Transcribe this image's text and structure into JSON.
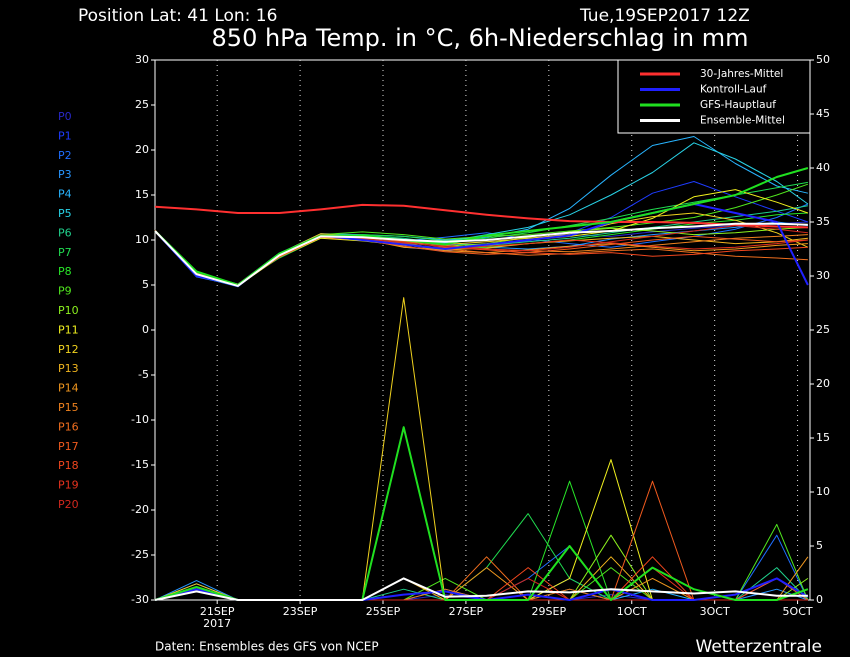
{
  "chart_data": {
    "type": "line",
    "header_left": "Position   Lat: 41 Lon: 16",
    "header_right": "Tue,19SEP2017  12Z",
    "title": "850 hPa Temp. in °C, 6h-Niederschlag in mm",
    "footer_left": "Daten: Ensembles des GFS von NCEP",
    "footer_right": "Wetterzentrale",
    "x_year": "2017",
    "x": [
      -1.5,
      -0.5,
      0.5,
      1.5,
      2.5,
      3.5,
      4.5,
      5.5,
      6.5,
      7.5,
      8.5,
      9.5,
      10.5,
      11.5,
      12.5,
      13.5,
      14.25
    ],
    "xlim": [
      -1.5,
      14.3
    ],
    "xticks": [
      {
        "value": 0,
        "label": "21SEP"
      },
      {
        "value": 2,
        "label": "23SEP"
      },
      {
        "value": 4,
        "label": "25SEP"
      },
      {
        "value": 6,
        "label": "27SEP"
      },
      {
        "value": 8,
        "label": "29SEP"
      },
      {
        "value": 10,
        "label": "1OCT"
      },
      {
        "value": 12,
        "label": "3OCT"
      },
      {
        "value": 14,
        "label": "5OCT"
      }
    ],
    "ylim": [
      -30,
      30
    ],
    "yticks": [
      -30,
      -25,
      -20,
      -15,
      -10,
      -5,
      0,
      5,
      10,
      15,
      20,
      25,
      30
    ],
    "y2lim": [
      0,
      50
    ],
    "y2ticks": [
      0,
      5,
      10,
      15,
      20,
      25,
      30,
      35,
      40,
      45,
      50
    ],
    "grid": "x",
    "legend": "top-right",
    "series": [
      {
        "name": "30-Jahres-Mittel",
        "color": "#ff3030",
        "values": [
          13.7,
          13.4,
          13.0,
          13.0,
          13.4,
          13.9,
          13.8,
          13.3,
          12.8,
          12.4,
          12.1,
          12.0,
          12.0,
          11.9,
          11.7,
          11.5,
          11.4
        ]
      },
      {
        "name": "Kontroll-Lauf",
        "color": "#2020ff",
        "values": [
          11,
          6,
          5,
          8.5,
          10.5,
          10,
          9.5,
          9,
          9.5,
          10,
          10.5,
          12,
          13,
          14,
          13,
          12,
          5
        ],
        "y2_values": [
          0,
          1,
          0,
          0,
          0,
          0,
          0.5,
          0.8,
          0,
          0.5,
          0,
          1,
          0,
          0,
          0.5,
          2,
          0.3
        ]
      },
      {
        "name": "GFS-Hauptlauf",
        "color": "#20e020",
        "values": [
          11,
          6.5,
          5,
          8.5,
          10.5,
          10.5,
          10,
          9.5,
          10.5,
          11,
          11.5,
          12,
          13,
          14,
          15,
          17,
          18
        ],
        "y2_values": [
          0,
          1.2,
          0,
          0,
          0,
          0,
          16,
          0,
          0,
          0,
          5,
          0,
          3,
          1,
          0,
          0,
          1
        ]
      },
      {
        "name": "Ensemble-Mittel",
        "color": "#ffffff",
        "values": [
          11,
          6.2,
          4.9,
          8.3,
          10.4,
          10.3,
          10,
          9.8,
          10,
          10.4,
          10.8,
          11,
          11.3,
          11.5,
          11.8,
          11.8,
          11.7
        ],
        "y2_values": [
          0,
          0.8,
          0,
          0,
          0,
          0,
          2,
          0.3,
          0.4,
          0.8,
          0.7,
          1,
          0.8,
          0.6,
          0.8,
          0.4,
          0.4
        ]
      }
    ],
    "members": [
      {
        "name": "P0",
        "color": "#2828c8",
        "values": [
          11,
          6.2,
          5,
          8.2,
          10.4,
          10.1,
          9.6,
          9.4,
          9.8,
          10.2,
          10.6,
          10.4,
          10.9,
          11.3,
          11.6,
          11.8,
          12.0
        ],
        "y2_values": [
          0,
          1,
          0,
          0,
          0,
          0,
          0,
          0.5,
          0,
          0,
          0,
          0.5,
          0,
          0,
          0,
          0,
          0
        ]
      },
      {
        "name": "P1",
        "color": "#1e3cff",
        "values": [
          11,
          6,
          4.8,
          8.4,
          10.6,
          10.3,
          9.2,
          8.8,
          9.4,
          9.9,
          10.8,
          12.5,
          15.2,
          16.5,
          14.8,
          13.2,
          12.0
        ],
        "y2_values": [
          0,
          1.5,
          0,
          0,
          0,
          0,
          0,
          1,
          0,
          0,
          2,
          0,
          0,
          0,
          0,
          2,
          0
        ]
      },
      {
        "name": "P2",
        "color": "#1e6eff",
        "values": [
          10.9,
          6.3,
          5.1,
          8.1,
          10.3,
          10.0,
          9.9,
          10.3,
          10.8,
          10.1,
          9.6,
          9.2,
          9.8,
          10.4,
          11.2,
          12.5,
          14.0
        ],
        "y2_values": [
          0,
          1,
          0,
          0,
          0,
          0,
          0,
          0,
          0,
          2,
          5,
          0,
          0,
          0,
          0,
          6,
          0
        ]
      },
      {
        "name": "P3",
        "color": "#2896ff",
        "values": [
          11,
          5.9,
          4.9,
          8.3,
          10.5,
          10.4,
          10.1,
          9.7,
          9.2,
          9.0,
          9.3,
          10.1,
          10.6,
          11.0,
          11.4,
          12.0,
          11.6
        ],
        "y2_values": [
          0,
          1.8,
          0,
          0,
          0,
          0,
          0,
          0,
          0,
          0,
          5,
          0,
          0,
          0,
          0,
          1,
          0
        ]
      },
      {
        "name": "P4",
        "color": "#28b4ff",
        "values": [
          11.1,
          6.1,
          5.0,
          8.5,
          10.7,
          10.6,
          10.4,
          10.0,
          10.3,
          11.2,
          13.5,
          17.2,
          20.5,
          21.5,
          18.5,
          16.0,
          15.2
        ],
        "y2_values": [
          0,
          1,
          0,
          0,
          0,
          0,
          0,
          0,
          0,
          0,
          0,
          0,
          1,
          0,
          0,
          0,
          0
        ]
      },
      {
        "name": "P5",
        "color": "#28d2e6",
        "values": [
          11,
          6.2,
          5.0,
          8.2,
          10.4,
          10.0,
          9.5,
          9.8,
          10.6,
          11.4,
          12.8,
          15.0,
          17.5,
          20.8,
          19.0,
          16.5,
          14.0
        ],
        "y2_values": [
          0,
          1,
          0,
          0,
          0,
          0,
          0,
          0,
          0,
          0,
          0,
          0,
          0,
          0,
          0,
          0,
          0
        ]
      },
      {
        "name": "P6",
        "color": "#20d08c",
        "values": [
          11,
          6,
          5,
          8.4,
          10.6,
          10.5,
          10.2,
          9.6,
          9.4,
          9.8,
          10.2,
          10.8,
          11.4,
          12.0,
          12.6,
          13.2,
          13.8
        ],
        "y2_values": [
          0,
          1.2,
          0,
          0,
          0,
          0,
          1,
          0,
          0,
          0,
          1,
          0,
          0,
          0,
          0,
          3,
          0
        ]
      },
      {
        "name": "P7",
        "color": "#20dc50",
        "values": [
          10.9,
          6.4,
          5.1,
          8.0,
          10.2,
          10.6,
          10.4,
          9.9,
          10.2,
          10.8,
          11.6,
          12.4,
          13.4,
          14.2,
          15.0,
          15.8,
          16.4
        ],
        "y2_values": [
          0,
          1,
          0,
          0,
          0,
          0,
          0,
          0,
          3,
          8,
          2,
          0,
          0,
          0,
          0,
          0,
          1
        ]
      },
      {
        "name": "P8",
        "color": "#28e628",
        "values": [
          11,
          6.0,
          4.9,
          8.3,
          10.5,
          10.3,
          9.6,
          9.0,
          9.2,
          9.6,
          10.0,
          10.6,
          11.2,
          11.8,
          12.2,
          12.8,
          13.0
        ],
        "y2_values": [
          0,
          1,
          0,
          0,
          0,
          0,
          0,
          0,
          0,
          0,
          11,
          0,
          0,
          0,
          0,
          0,
          0
        ]
      },
      {
        "name": "P9",
        "color": "#50e61e",
        "values": [
          11.1,
          6.2,
          5.0,
          8.4,
          10.6,
          10.9,
          10.6,
          10.1,
          10.4,
          10.6,
          11.0,
          11.4,
          11.9,
          12.5,
          13.6,
          15.0,
          16.2
        ],
        "y2_values": [
          0,
          1,
          0,
          0,
          0,
          0,
          0,
          2,
          0,
          0,
          0,
          3,
          0,
          0,
          0,
          7,
          0
        ]
      },
      {
        "name": "P10",
        "color": "#8cf01e",
        "values": [
          11,
          6.1,
          5.0,
          8.2,
          10.4,
          10.2,
          9.7,
          9.3,
          9.6,
          10.3,
          10.9,
          11.3,
          11.0,
          10.6,
          10.8,
          11.2,
          11.4
        ],
        "y2_values": [
          0,
          1,
          0,
          0,
          0,
          0,
          0,
          0,
          0,
          0,
          0,
          6,
          0,
          0,
          0,
          0,
          2
        ]
      },
      {
        "name": "P11",
        "color": "#f0f01e",
        "values": [
          10.9,
          6.3,
          4.9,
          8.1,
          10.2,
          9.9,
          9.4,
          9.1,
          9.5,
          10.0,
          10.4,
          11.0,
          12.4,
          14.8,
          15.6,
          14.2,
          13.0
        ],
        "y2_values": [
          0,
          1,
          0,
          0,
          0,
          0,
          0,
          0,
          0,
          0,
          2,
          13,
          0,
          0,
          0,
          0,
          0
        ]
      },
      {
        "name": "P12",
        "color": "#f0d21e",
        "values": [
          11,
          6.0,
          5.1,
          8.5,
          10.7,
          10.4,
          9.8,
          9.5,
          9.8,
          10.2,
          10.6,
          11.8,
          12.6,
          13.0,
          12.2,
          10.8,
          9.2
        ],
        "y2_values": [
          0,
          1.5,
          0,
          0,
          0,
          0,
          28,
          0,
          0,
          0,
          0,
          0,
          0,
          0,
          0,
          0,
          0
        ]
      },
      {
        "name": "P13",
        "color": "#f0b41e",
        "values": [
          11,
          6.2,
          5.0,
          8.3,
          10.5,
          10.1,
          9.2,
          8.9,
          9.1,
          9.6,
          9.9,
          10.2,
          10.4,
          10.0,
          9.6,
          9.8,
          10.2
        ],
        "y2_values": [
          0,
          1,
          0,
          0,
          0,
          0,
          2,
          0,
          0,
          0,
          0,
          4,
          0,
          0,
          0,
          0,
          0
        ]
      },
      {
        "name": "P14",
        "color": "#f0961e",
        "values": [
          11.1,
          6.1,
          4.9,
          8.2,
          10.4,
          10.0,
          9.5,
          8.8,
          8.6,
          8.9,
          9.3,
          9.6,
          9.2,
          8.8,
          9.0,
          9.4,
          9.6
        ],
        "y2_values": [
          0,
          1,
          0,
          0,
          0,
          0,
          0,
          0,
          3,
          0,
          0,
          0,
          2,
          0,
          0,
          0,
          4
        ]
      },
      {
        "name": "P15",
        "color": "#f0821e",
        "values": [
          11,
          6.3,
          5.0,
          8.4,
          10.6,
          10.3,
          9.9,
          9.4,
          9.0,
          8.8,
          8.7,
          9.0,
          9.4,
          9.8,
          10.2,
          10.4,
          10.6
        ],
        "y2_values": [
          0,
          1,
          0,
          0,
          0,
          0,
          0,
          1,
          0,
          0,
          0,
          0,
          0,
          0,
          0,
          0,
          0
        ]
      },
      {
        "name": "P16",
        "color": "#f06e1e",
        "values": [
          11,
          6.0,
          5.1,
          8.3,
          10.5,
          10.2,
          9.6,
          9.0,
          8.6,
          8.3,
          8.5,
          8.8,
          9.0,
          8.6,
          8.2,
          8.0,
          7.8
        ],
        "y2_values": [
          0,
          1,
          0,
          0,
          0,
          0,
          0,
          0,
          4,
          0,
          1,
          0,
          0,
          0,
          0,
          0,
          0
        ]
      },
      {
        "name": "P17",
        "color": "#f05a1e",
        "values": [
          10.9,
          6.2,
          5.0,
          8.1,
          10.3,
          10.0,
          9.3,
          8.7,
          8.4,
          8.6,
          9.0,
          9.5,
          10.0,
          10.4,
          10.1,
          9.8,
          10.0
        ],
        "y2_values": [
          0,
          1,
          0,
          0,
          0,
          0,
          0,
          0,
          0,
          0,
          0,
          0,
          11,
          0,
          0,
          2,
          0
        ]
      },
      {
        "name": "P18",
        "color": "#f0461e",
        "values": [
          11,
          6.1,
          4.9,
          8.4,
          10.6,
          10.4,
          9.8,
          9.2,
          8.9,
          8.6,
          8.4,
          8.6,
          8.2,
          8.4,
          8.8,
          9.0,
          9.2
        ],
        "y2_values": [
          0,
          1,
          0,
          0,
          0,
          0,
          0,
          0,
          0,
          3,
          0,
          0,
          4,
          0,
          0,
          0,
          1
        ]
      },
      {
        "name": "P19",
        "color": "#e6321e",
        "values": [
          11.1,
          6.2,
          5.0,
          8.2,
          10.4,
          10.1,
          9.5,
          9.1,
          9.3,
          9.6,
          10.0,
          9.7,
          9.3,
          9.0,
          9.2,
          9.6,
          10.0
        ],
        "y2_values": [
          0,
          1,
          0,
          0,
          0,
          0,
          0,
          0,
          0,
          0,
          0,
          0,
          3,
          0,
          0,
          0,
          0
        ]
      },
      {
        "name": "P20",
        "color": "#d2281e",
        "values": [
          11,
          6.0,
          5.0,
          8.3,
          10.5,
          10.2,
          9.7,
          9.3,
          9.0,
          8.8,
          9.2,
          9.8,
          10.4,
          11.0,
          11.6,
          11.2,
          10.8
        ],
        "y2_values": [
          0,
          1,
          0,
          0,
          0,
          0,
          0,
          0,
          0,
          2,
          0,
          0,
          0,
          0,
          0,
          0,
          0
        ]
      }
    ]
  }
}
